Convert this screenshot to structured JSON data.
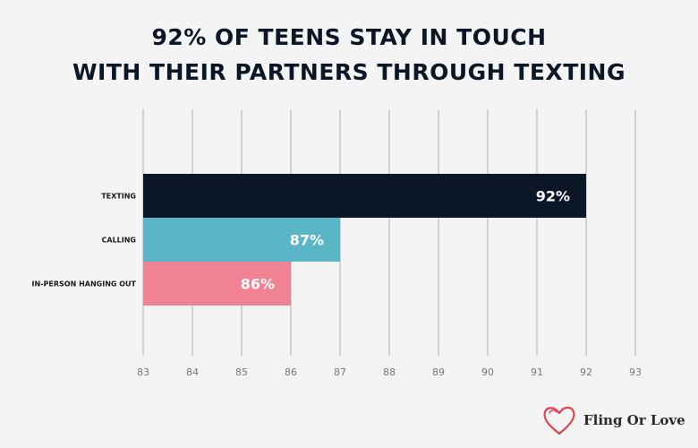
{
  "title_lines": [
    "92% OF TEENS STAY IN TOUCH",
    "WITH THEIR PARTNERS THROUGH TEXTING"
  ],
  "logo": {
    "text": "Fling Or Love",
    "icon": "heart-icon",
    "color": "#e0434f"
  },
  "chart_data": {
    "type": "bar",
    "orientation": "horizontal",
    "title": "92% OF TEENS STAY IN TOUCH WITH THEIR PARTNERS THROUGH TEXTING",
    "categories": [
      "TEXTING",
      "CALLING",
      "IN-PERSON HANGING OUT"
    ],
    "values": [
      92,
      87,
      86
    ],
    "value_labels": [
      "92%",
      "87%",
      "86%"
    ],
    "colors": [
      "#0b1727",
      "#5ab6c6",
      "#ef8393"
    ],
    "xlim": [
      83,
      93
    ],
    "xticks": [
      83,
      84,
      85,
      86,
      87,
      88,
      89,
      90,
      91,
      92,
      93
    ],
    "xlabel": "",
    "ylabel": "",
    "grid": true
  }
}
